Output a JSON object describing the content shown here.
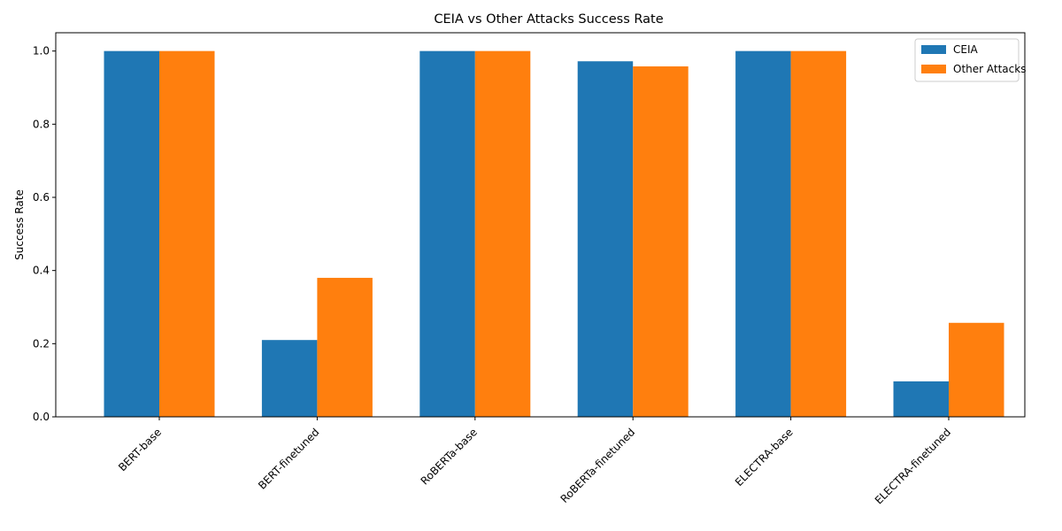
{
  "chart_data": {
    "type": "bar",
    "title": "CEIA vs Other Attacks Success Rate",
    "xlabel": "",
    "ylabel": "Success Rate",
    "ylim": [
      0,
      1.05
    ],
    "yticks": [
      "0.0",
      "0.2",
      "0.4",
      "0.6",
      "0.8",
      "1.0"
    ],
    "grid": false,
    "legend_position": "top-right",
    "categories": [
      "BERT-base",
      "BERT-finetuned",
      "RoBERTa-base",
      "RoBERTa-finetuned",
      "ELECTRA-base",
      "ELECTRA-finetuned"
    ],
    "series": [
      {
        "name": "CEIA",
        "color": "#1f77b4",
        "values": [
          1.0,
          0.21,
          1.0,
          0.972,
          1.0,
          0.097
        ]
      },
      {
        "name": "Other Attacks",
        "color": "#ff7f0e",
        "values": [
          1.0,
          0.38,
          1.0,
          0.958,
          1.0,
          0.257
        ]
      }
    ]
  }
}
